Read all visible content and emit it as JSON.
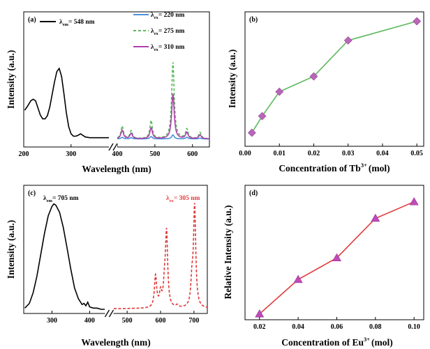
{
  "chart_data": [
    {
      "panel": "(a)",
      "type": "line",
      "xlabel": "Wavelength (nm)",
      "ylabel": "Intensity (a.u.)",
      "axis_break": "between 380 and 400 nm",
      "x_ticks": [
        "200",
        "300",
        "400",
        "500",
        "600"
      ],
      "xlim": [
        200,
        645
      ],
      "excitation": {
        "label": "λem = 548 nm",
        "legend": {
          "prefix": "λ",
          "sub": "em",
          "suffix": "= 548 nm"
        },
        "color": "#000000",
        "x": [
          202,
          208,
          215,
          220,
          225,
          230,
          235,
          240,
          245,
          250,
          255,
          260,
          265,
          270,
          275,
          280,
          285,
          290,
          295,
          300,
          305,
          310,
          315,
          320,
          325,
          330,
          340,
          350,
          360,
          370,
          380
        ],
        "y": [
          0.37,
          0.42,
          0.49,
          0.51,
          0.49,
          0.4,
          0.31,
          0.26,
          0.26,
          0.3,
          0.41,
          0.57,
          0.73,
          0.86,
          0.9,
          0.8,
          0.58,
          0.34,
          0.16,
          0.07,
          0.04,
          0.04,
          0.05,
          0.07,
          0.05,
          0.03,
          0.02,
          0.02,
          0.02,
          0.02,
          0.02
        ]
      },
      "series": [
        {
          "name": "λex = 220 nm",
          "legend": {
            "prefix": "λ",
            "sub": "ex",
            "suffix": "= 220 nm"
          },
          "color": "#4a90d9",
          "dash": "solid",
          "peaks": [
            [
              413,
              0.02
            ],
            [
              437,
              0.015
            ],
            [
              490,
              0.03
            ],
            [
              548,
              0.05
            ],
            [
              585,
              0.02
            ],
            [
              620,
              0.01
            ]
          ]
        },
        {
          "name": "λex = 275 nm",
          "legend": {
            "prefix": "λ",
            "sub": "ex",
            "suffix": "= 275 nm"
          },
          "color": "#5cb85c",
          "dash": "dashed",
          "peaks": [
            [
              413,
              0.16
            ],
            [
              437,
              0.1
            ],
            [
              490,
              0.23
            ],
            [
              548,
              0.97
            ],
            [
              585,
              0.12
            ],
            [
              620,
              0.08
            ]
          ]
        },
        {
          "name": "λex = 310 nm",
          "legend": {
            "prefix": "λ",
            "sub": "ex",
            "suffix": "= 310 nm"
          },
          "color": "#b040b0",
          "dash": "solid",
          "peaks": [
            [
              413,
              0.11
            ],
            [
              437,
              0.07
            ],
            [
              490,
              0.14
            ],
            [
              548,
              0.57
            ],
            [
              585,
              0.08
            ],
            [
              620,
              0.05
            ]
          ]
        }
      ]
    },
    {
      "panel": "(b)",
      "type": "line",
      "xlabel": "Concentration of Tb",
      "xlabel_sup": "3+",
      "xlabel_suffix": "(mol)",
      "ylabel": "Intensity (a.u.)",
      "x_ticks": [
        "0.00",
        "0.01",
        "0.02",
        "0.03",
        "0.04",
        "0.05"
      ],
      "xlim": [
        0,
        0.052
      ],
      "line_color": "#5cb85c",
      "marker": "diamond",
      "marker_color": "#b866b8",
      "x": [
        0.002,
        0.005,
        0.01,
        0.02,
        0.03,
        0.05
      ],
      "y": [
        0.1,
        0.23,
        0.42,
        0.54,
        0.82,
        0.97
      ]
    },
    {
      "panel": "(c)",
      "type": "line",
      "xlabel": "Wavelength (nm)",
      "ylabel": "Intensity (a.u.)",
      "axis_break": "between 440 and 460 nm",
      "x_ticks": [
        "300",
        "400",
        "500",
        "600",
        "700"
      ],
      "xlim": [
        225,
        740
      ],
      "excitation": {
        "label": "λem = 705 nm",
        "legend": {
          "prefix": "λ",
          "sub": "em",
          "suffix": "= 705 nm"
        },
        "color": "#000000",
        "x": [
          228,
          240,
          250,
          260,
          270,
          280,
          290,
          300,
          305,
          310,
          320,
          330,
          340,
          350,
          360,
          370,
          380,
          385,
          390,
          395,
          400,
          410,
          420,
          430,
          440
        ],
        "y": [
          0.01,
          0.05,
          0.14,
          0.28,
          0.46,
          0.64,
          0.79,
          0.87,
          0.89,
          0.88,
          0.82,
          0.69,
          0.52,
          0.34,
          0.18,
          0.09,
          0.04,
          0.05,
          0.03,
          0.06,
          0.02,
          0.01,
          0.01,
          0.0,
          0.0
        ]
      },
      "series": [
        {
          "name": "λex = 305 nm",
          "legend": {
            "prefix": "λ",
            "sub": "ex",
            "suffix": "= 305 nm"
          },
          "color": "#e03a3a",
          "dash": "dashed",
          "peaks": [
            [
              585,
              0.27
            ],
            [
              600,
              0.12
            ],
            [
              612,
              0.16
            ],
            [
              618,
              0.62
            ],
            [
              650,
              0.02
            ],
            [
              694,
              0.2
            ],
            [
              702,
              0.85
            ]
          ]
        }
      ]
    },
    {
      "panel": "(d)",
      "type": "line",
      "xlabel": "Concentration of Eu",
      "xlabel_sup": "3+",
      "xlabel_suffix": "(mol)",
      "ylabel": "Relative Intensity (a.u.)",
      "x_ticks": [
        "0.02",
        "0.04",
        "0.06",
        "0.08",
        "0.10"
      ],
      "xlim": [
        0.0125,
        0.105
      ],
      "line_color": "#e03a3a",
      "marker": "triangle",
      "marker_color": "#c04ab8",
      "x": [
        0.02,
        0.04,
        0.06,
        0.08,
        0.1
      ],
      "y": [
        0.1,
        0.37,
        0.54,
        0.85,
        0.98
      ]
    }
  ]
}
